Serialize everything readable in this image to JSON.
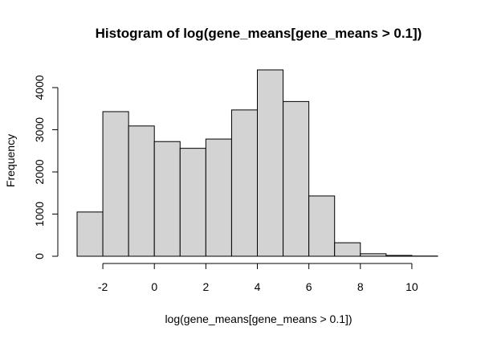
{
  "chart_data": {
    "type": "bar",
    "title": "Histogram of log(gene_means[gene_means > 0.1])",
    "xlabel": "log(gene_means[gene_means > 0.1])",
    "ylabel": "Frequency",
    "bin_edges": [
      -3,
      -2,
      -1,
      0,
      1,
      2,
      3,
      4,
      5,
      6,
      7,
      8,
      9,
      10,
      11
    ],
    "values": [
      1050,
      3430,
      3090,
      2720,
      2560,
      2780,
      3470,
      4420,
      3670,
      1430,
      320,
      60,
      20,
      5
    ],
    "xlim": [
      -3,
      11
    ],
    "ylim": [
      0,
      4420
    ],
    "x_ticks": [
      -2,
      0,
      2,
      4,
      6,
      8,
      10
    ],
    "x_tick_labels": [
      "-2",
      "0",
      "2",
      "4",
      "6",
      "8",
      "10"
    ],
    "y_ticks": [
      0,
      1000,
      2000,
      3000,
      4000
    ],
    "y_tick_labels": [
      "0",
      "1000",
      "2000",
      "3000",
      "4000"
    ],
    "bar_color": "#d3d3d3",
    "grid": false,
    "legend": "none"
  }
}
